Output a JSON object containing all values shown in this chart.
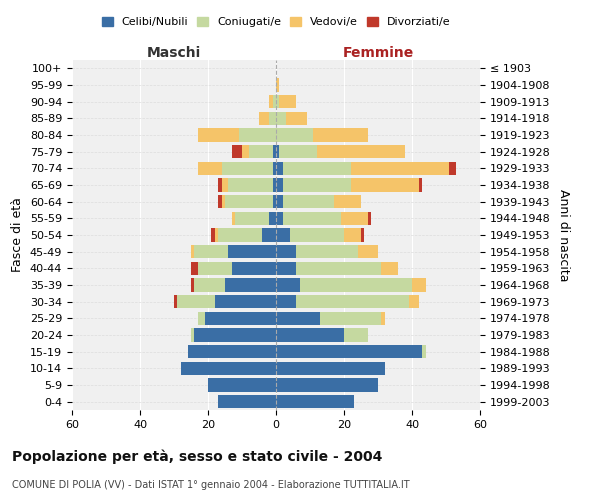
{
  "age_groups": [
    "100+",
    "95-99",
    "90-94",
    "85-89",
    "80-84",
    "75-79",
    "70-74",
    "65-69",
    "60-64",
    "55-59",
    "50-54",
    "45-49",
    "40-44",
    "35-39",
    "30-34",
    "25-29",
    "20-24",
    "15-19",
    "10-14",
    "5-9",
    "0-4"
  ],
  "birth_years": [
    "≤ 1903",
    "1904-1908",
    "1909-1913",
    "1914-1918",
    "1919-1923",
    "1924-1928",
    "1929-1933",
    "1934-1938",
    "1939-1943",
    "1944-1948",
    "1949-1953",
    "1954-1958",
    "1959-1963",
    "1964-1968",
    "1969-1973",
    "1974-1978",
    "1979-1983",
    "1984-1988",
    "1989-1993",
    "1994-1998",
    "1999-2003"
  ],
  "male": {
    "celibi": [
      0,
      0,
      0,
      0,
      0,
      1,
      1,
      1,
      1,
      2,
      4,
      14,
      13,
      15,
      18,
      21,
      24,
      26,
      28,
      20,
      17
    ],
    "coniugati": [
      0,
      0,
      1,
      2,
      11,
      7,
      15,
      13,
      14,
      10,
      13,
      10,
      10,
      9,
      11,
      2,
      1,
      0,
      0,
      0,
      0
    ],
    "vedovi": [
      0,
      0,
      1,
      3,
      12,
      2,
      7,
      2,
      1,
      1,
      1,
      1,
      0,
      0,
      0,
      0,
      0,
      0,
      0,
      0,
      0
    ],
    "divorziati": [
      0,
      0,
      0,
      0,
      0,
      3,
      0,
      1,
      1,
      0,
      1,
      0,
      2,
      1,
      1,
      0,
      0,
      0,
      0,
      0,
      0
    ]
  },
  "female": {
    "nubili": [
      0,
      0,
      0,
      0,
      0,
      1,
      2,
      2,
      2,
      2,
      4,
      6,
      6,
      7,
      6,
      13,
      20,
      43,
      32,
      30,
      23
    ],
    "coniugate": [
      0,
      0,
      1,
      3,
      11,
      11,
      20,
      20,
      15,
      17,
      16,
      18,
      25,
      33,
      33,
      18,
      7,
      1,
      0,
      0,
      0
    ],
    "vedove": [
      0,
      1,
      5,
      6,
      16,
      26,
      29,
      20,
      8,
      8,
      5,
      6,
      5,
      4,
      3,
      1,
      0,
      0,
      0,
      0,
      0
    ],
    "divorziate": [
      0,
      0,
      0,
      0,
      0,
      0,
      2,
      1,
      0,
      1,
      1,
      0,
      0,
      0,
      0,
      0,
      0,
      0,
      0,
      0,
      0
    ]
  },
  "colors": {
    "celibi": "#3a6ea5",
    "coniugati": "#c5d9a0",
    "vedovi": "#f5c469",
    "divorziati": "#c0392b"
  },
  "legend_labels": [
    "Celibi/Nubili",
    "Coniugati/e",
    "Vedovi/e",
    "Divorziati/e"
  ],
  "title": "Popolazione per età, sesso e stato civile - 2004",
  "subtitle": "COMUNE DI POLIA (VV) - Dati ISTAT 1° gennaio 2004 - Elaborazione TUTTITALIA.IT",
  "ylabel_left": "Fasce di età",
  "ylabel_right": "Anni di nascita",
  "xlabel_male": "Maschi",
  "xlabel_female": "Femmine",
  "xlim": 60,
  "background_color": "#ffffff"
}
